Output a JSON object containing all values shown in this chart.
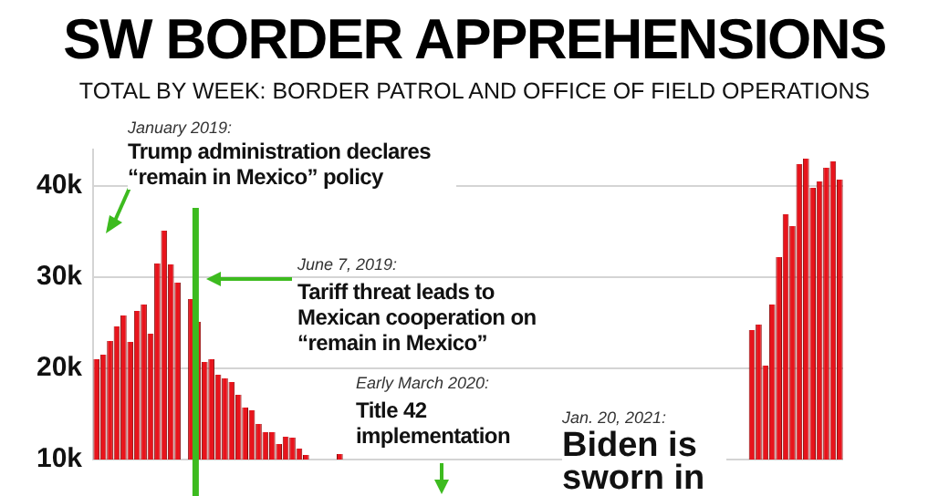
{
  "chart_data": {
    "type": "bar",
    "title": "SW BORDER APPREHENSIONS",
    "subtitle": "TOTAL BY WEEK: BORDER PATROL AND OFFICE OF FIELD OPERATIONS",
    "annotations": [
      "January 2019:",
      "Trump administration declares “remain in Mexico” policy",
      "June 7, 2019:",
      "Tariff threat leads to Mexican cooperation on “remain in Mexico”",
      "Early March 2020:",
      "Title 42 implementation",
      "Jan. 20, 2021:",
      "Biden is sworn in"
    ],
    "categories": [
      null,
      null,
      null,
      null,
      null,
      null,
      null,
      null,
      null,
      null,
      null,
      null,
      null,
      null,
      null,
      null,
      null,
      null,
      null,
      null,
      null,
      null,
      null,
      null,
      null,
      null,
      null,
      null,
      null,
      null,
      null,
      null,
      null,
      null,
      null,
      null,
      null,
      null,
      null,
      null,
      null,
      null,
      null,
      null,
      null,
      null,
      null,
      null,
      null,
      null,
      null,
      null,
      null,
      null,
      null,
      null,
      null,
      null,
      null,
      null,
      null,
      null,
      null,
      null,
      null,
      null,
      null,
      null,
      null,
      null,
      null,
      null,
      null,
      null,
      null,
      null,
      null,
      null,
      null,
      null,
      null,
      null,
      null,
      null,
      null,
      null,
      null,
      null,
      null,
      null,
      null,
      null,
      null,
      null,
      null,
      null,
      null,
      null,
      null,
      null,
      null,
      null,
      null,
      null,
      null,
      null,
      null,
      null,
      null,
      null,
      null
    ],
    "values": [
      21000,
      21500,
      23000,
      24600,
      25800,
      22900,
      26300,
      27000,
      23800,
      31500,
      35100,
      31400,
      29400,
      null,
      27600,
      25100,
      20700,
      21000,
      19300,
      18900,
      18500,
      17100,
      15700,
      15400,
      13900,
      13000,
      13000,
      11700,
      12500,
      12400,
      11200,
      10500,
      null,
      null,
      null,
      null,
      10600,
      null,
      null,
      null,
      null,
      null,
      null,
      null,
      null,
      null,
      null,
      null,
      null,
      null,
      null,
      null,
      null,
      null,
      null,
      null,
      null,
      null,
      null,
      null,
      null,
      null,
      null,
      null,
      null,
      null,
      null,
      null,
      null,
      null,
      null,
      null,
      null,
      null,
      null,
      null,
      null,
      null,
      null,
      null,
      null,
      null,
      null,
      null,
      null,
      null,
      null,
      null,
      null,
      null,
      null,
      null,
      null,
      null,
      null,
      null,
      null,
      24200,
      24800,
      20300,
      27000,
      32200,
      36900,
      35600,
      42400,
      43000,
      39800,
      40500,
      42000,
      42700,
      40700
    ],
    "color": "#e8141c",
    "ylim": [
      10000,
      44000
    ],
    "yticks": [
      {
        "value": 10000,
        "label": "10k"
      },
      {
        "value": 20000,
        "label": "20k"
      },
      {
        "value": 30000,
        "label": "30k"
      },
      {
        "value": 40000,
        "label": "40k"
      }
    ],
    "grid": "y",
    "tick_labels": "y"
  }
}
